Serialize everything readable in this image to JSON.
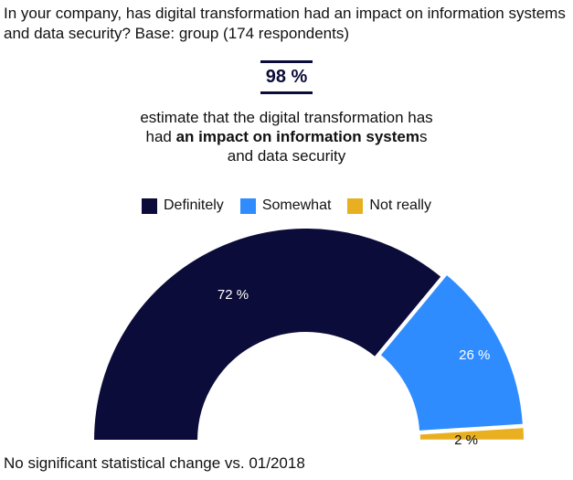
{
  "title": "In your company, has digital transformation had an impact on information systems and data security? Base: group (174 respondents)",
  "kpi": {
    "value": "98 %",
    "line1": "estimate that the digital transformation has",
    "line2_pre": "had ",
    "line2_bold": "an impact on information system",
    "line2_post": "s",
    "line3": "and data security"
  },
  "chart_data": {
    "type": "pie",
    "subtype": "semi-donut",
    "categories": [
      "Definitely",
      "Somewhat",
      "Not really"
    ],
    "values": [
      72,
      26,
      2
    ],
    "labels": [
      "72 %",
      "26 %",
      "2 %"
    ],
    "colors": [
      "#0c0c3a",
      "#2f8cff",
      "#e8b020"
    ],
    "label_colors": [
      "#ffffff",
      "#ffffff",
      "#111111"
    ],
    "legend": "top-center"
  },
  "footnote": "No significant statistical change vs. 01/2018"
}
